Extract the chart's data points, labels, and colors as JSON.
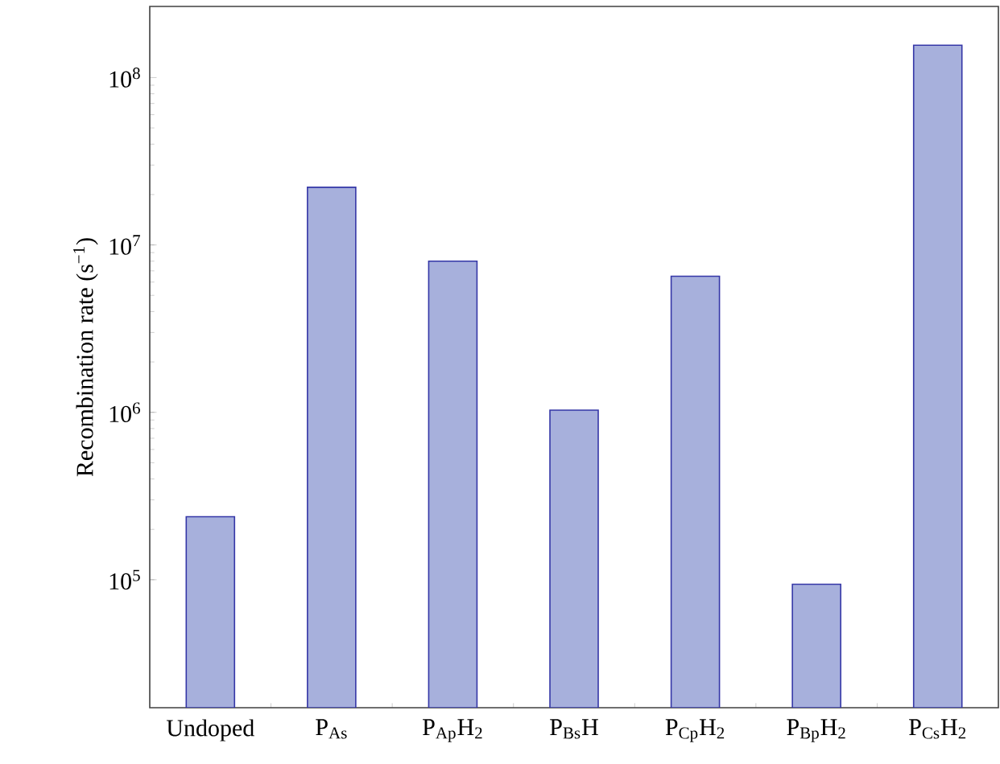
{
  "chart_data": {
    "type": "bar",
    "ylabel": "Recombination rate (s$^{−1}$)",
    "categories": [
      "Undoped",
      "P$_{As}$",
      "P$_{Ap}$H$_{2}$",
      "P$_{Bs}$H",
      "P$_{Cp}$H$_{2}$",
      "P$_{Bp}$H$_{2}$",
      "P$_{Cs}$H$_{2}$"
    ],
    "values": [
      238000,
      22100000,
      8000000,
      1030000,
      6500000,
      94000,
      156000000
    ],
    "color": "#a7b0dc",
    "log": true,
    "ylim": [
      17200,
      266000000
    ],
    "yticks": [
      {
        "value": 100000,
        "label": "10$^{5}$"
      },
      {
        "value": 1000000,
        "label": "10$^{6}$"
      },
      {
        "value": 10000000,
        "label": "10$^{7}$"
      },
      {
        "value": 100000000,
        "label": "10$^{8}$"
      }
    ],
    "grid": false
  }
}
